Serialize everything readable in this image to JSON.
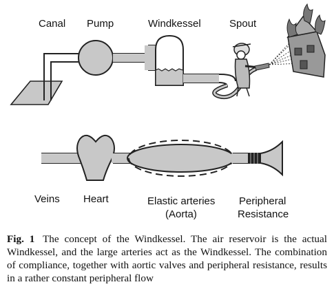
{
  "top_labels": {
    "canal": "Canal",
    "pump": "Pump",
    "windkessel": "Windkessel",
    "spout": "Spout"
  },
  "bottom_labels": {
    "veins": "Veins",
    "heart": "Heart",
    "elastic_line1": "Elastic arteries",
    "elastic_line2": "(Aorta)",
    "peripheral_line1": "Peripheral",
    "peripheral_line2": "Resistance"
  },
  "caption": {
    "fig_label": "Fig. 1",
    "text": "The concept of the Windkessel. The air reservoir is the actual Windkessel, and the large arteries act as the Windkessel. The combination of compliance, together with aortic valves and peripheral resistance, results in a rather constant peripheral flow"
  }
}
